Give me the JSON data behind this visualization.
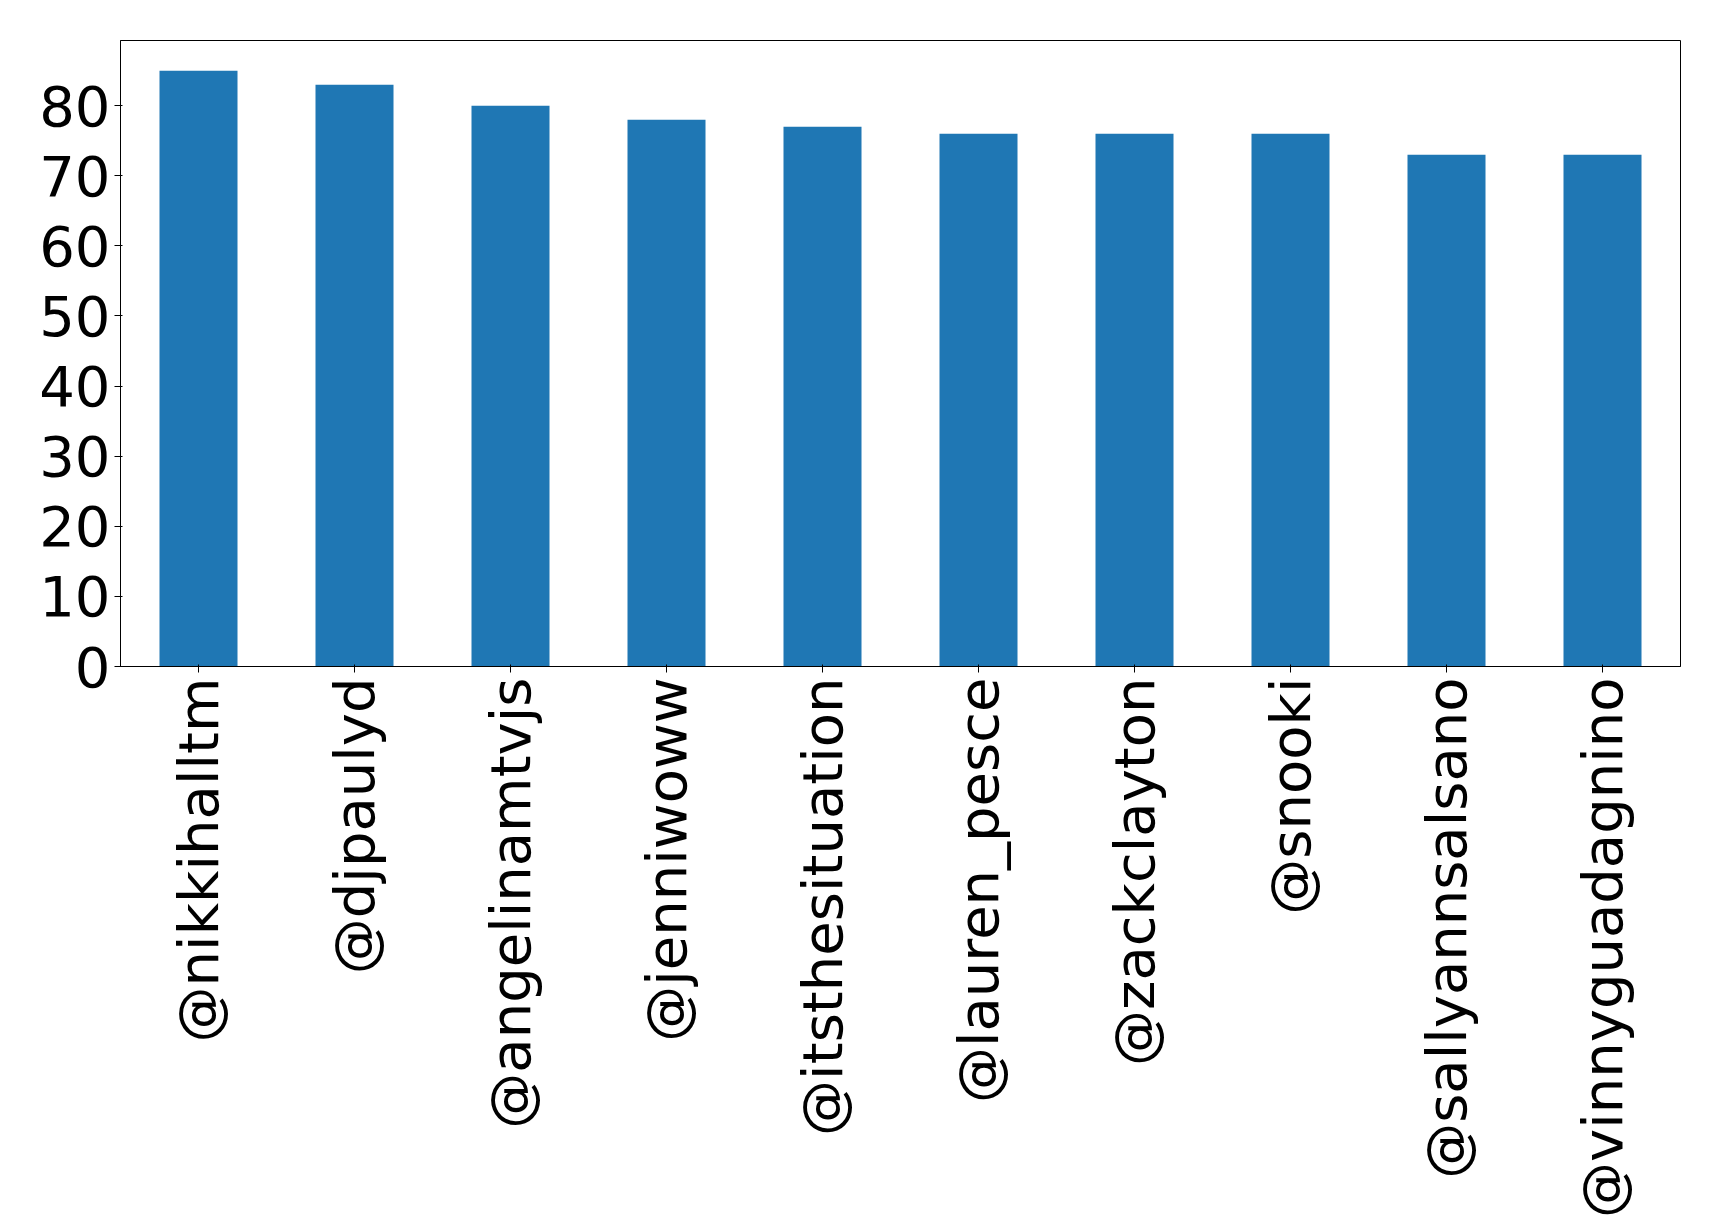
{
  "chart_data": {
    "type": "bar",
    "categories": [
      "@nikkihalltm",
      "@djpaulyd",
      "@angelinamtvjs",
      "@jenniwoww",
      "@itsthesituation",
      "@lauren_pesce",
      "@zackclayton",
      "@snooki",
      "@sallyannsalsano",
      "@vinnyguadagnino"
    ],
    "values": [
      85,
      83,
      80,
      78,
      77,
      76,
      76,
      76,
      73,
      73
    ],
    "color": "#1f77b4",
    "ylim": [
      0,
      89.3
    ],
    "yticks": [
      0,
      10,
      20,
      30,
      40,
      50,
      60,
      70,
      80
    ],
    "grid": false
  }
}
